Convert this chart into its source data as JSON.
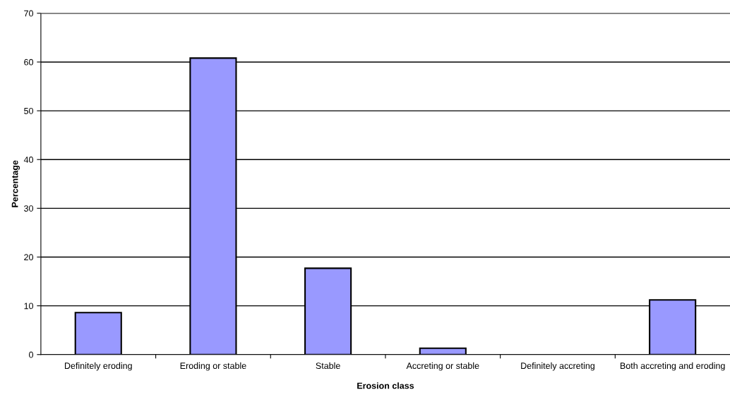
{
  "chart_data": {
    "type": "bar",
    "xlabel": "Erosion class",
    "ylabel": "Percentage",
    "categories": [
      "Definitely eroding",
      "Eroding or stable",
      "Stable",
      "Accreting or stable",
      "Definitely accreting",
      "Both accreting and eroding"
    ],
    "values": [
      8.6,
      60.8,
      17.7,
      1.3,
      0,
      11.2
    ],
    "color": "#9999ff",
    "ylim": [
      0,
      70
    ],
    "yticks": [
      0,
      10,
      20,
      30,
      40,
      50,
      60,
      70
    ],
    "grid": "y"
  }
}
